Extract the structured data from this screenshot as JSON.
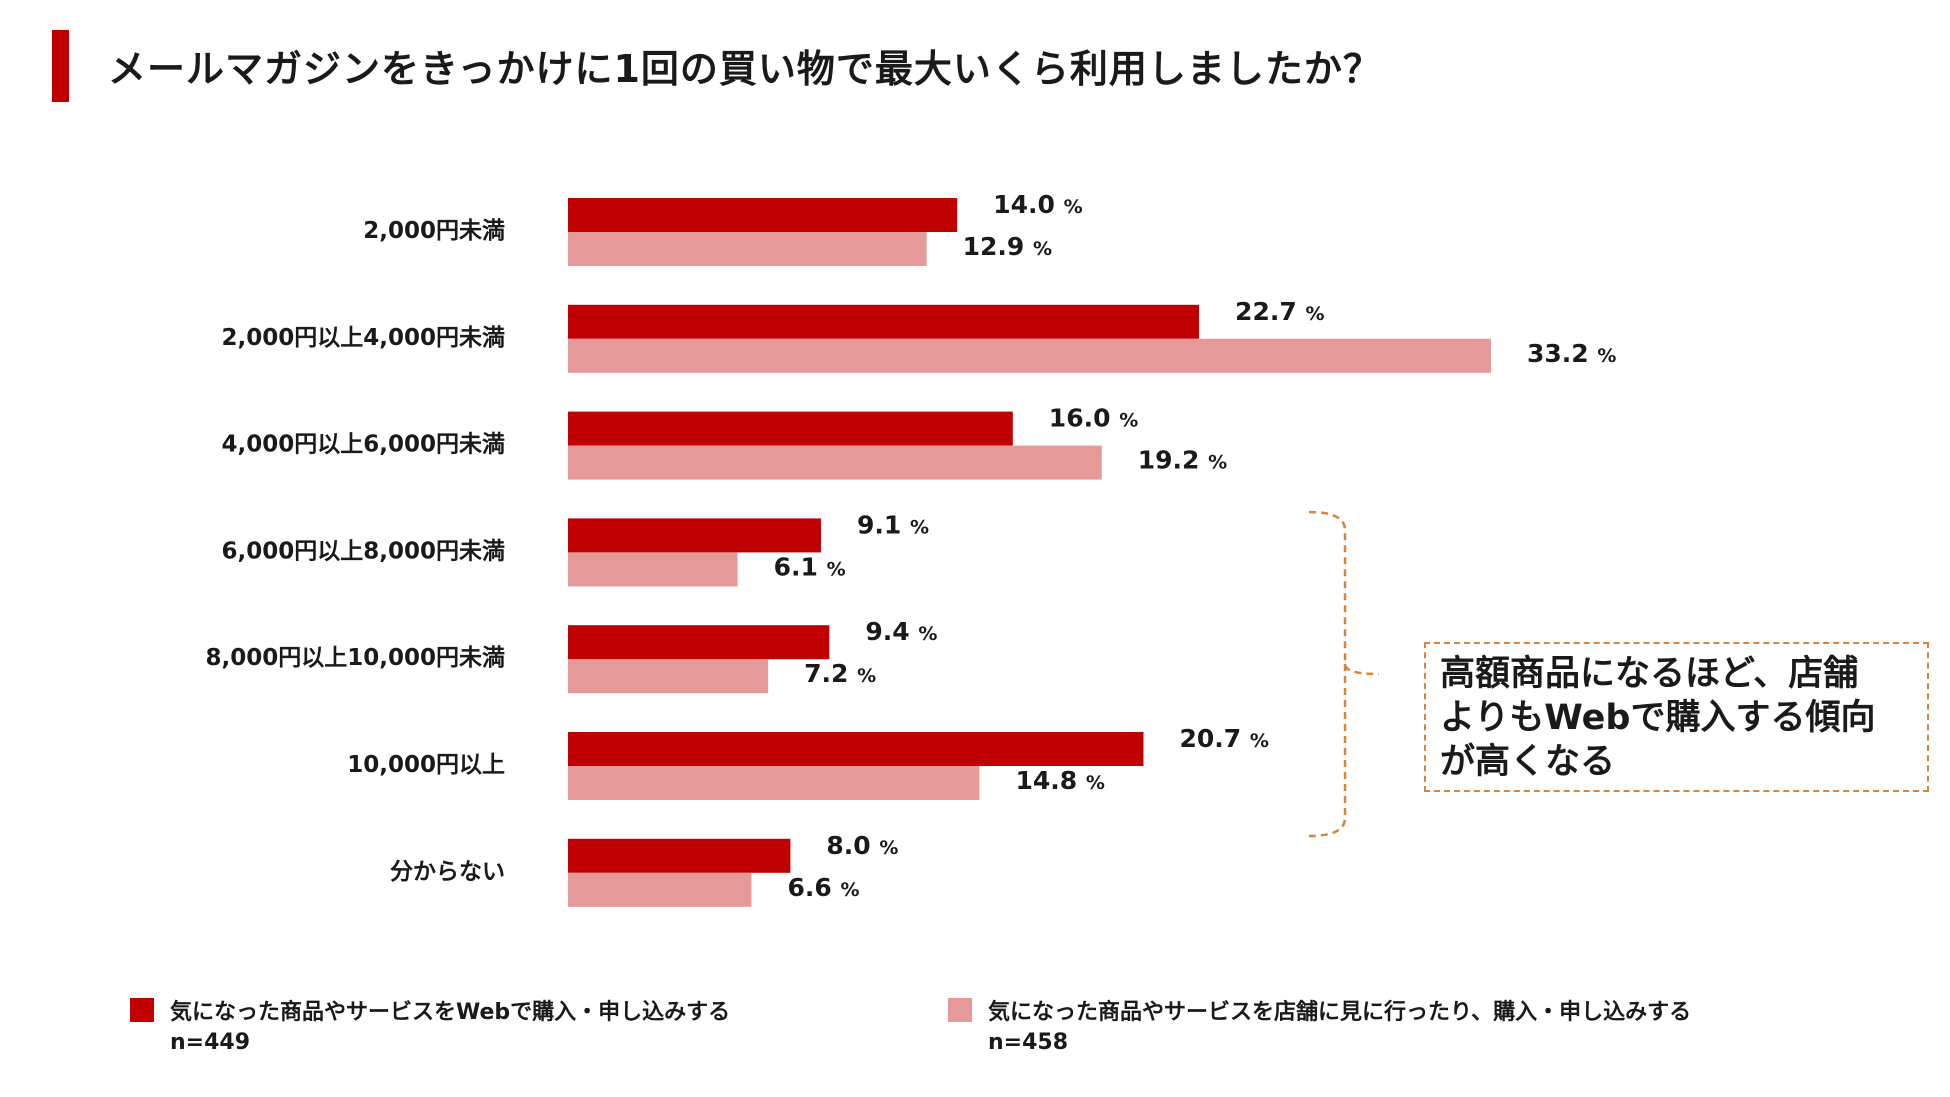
{
  "title": "メールマガジンをきっかけに1回の買い物で最大いくら利用しましたか？",
  "chart_data": {
    "type": "bar",
    "orientation": "horizontal",
    "title": "メールマガジンをきっかけに1回の買い物で最大いくら利用しましたか？",
    "categories": [
      "2,000円未満",
      "2,000円以上4,000円未満",
      "4,000円以上6,000円未満",
      "6,000円以上8,000円未満",
      "8,000円以上10,000円未満",
      "10,000円以上",
      "分からない"
    ],
    "series": [
      {
        "name": "気になった商品やサービスをWebで購入・申し込みする",
        "n": "n=449",
        "color": "#c00000",
        "values": [
          14.0,
          22.7,
          16.0,
          9.1,
          9.4,
          20.7,
          8.0
        ]
      },
      {
        "name": "気になった商品やサービスを店舗に見に行ったり、購入・申し込みする",
        "n": "n=458",
        "color": "#e59999",
        "values": [
          12.9,
          33.2,
          19.2,
          6.1,
          7.2,
          14.8,
          6.6
        ]
      }
    ],
    "unit": "%",
    "xlim": [
      0,
      35
    ],
    "grid": false,
    "legend": "bottom"
  },
  "callout": {
    "lines": [
      "高額商品になるほど、店舗",
      "よりもWebで購入する傾向",
      "が高くなる"
    ],
    "border_color": "#d9843a"
  }
}
